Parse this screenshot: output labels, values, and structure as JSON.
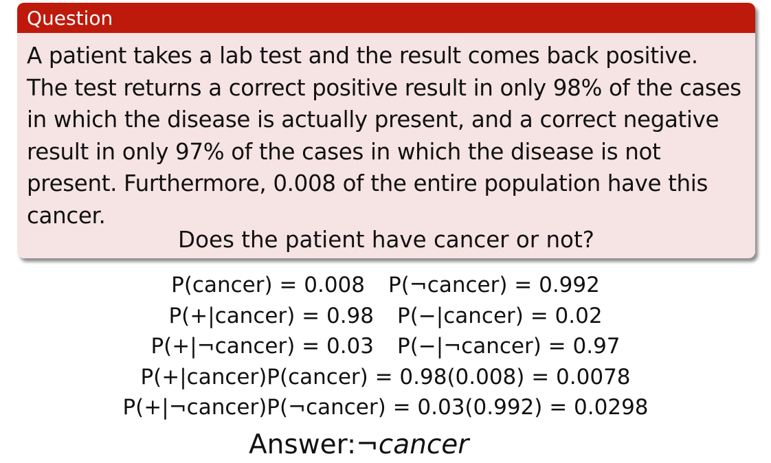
{
  "block": {
    "title": "Question",
    "paragraph": "A patient takes a lab test and the result comes back positive. The test returns a correct positive result in only 98% of the cases in which the disease is actually present, and a correct negative result in only 97% of the cases in which the disease is not present. Furthermore, 0.008 of the entire population have this cancer.",
    "question": "Does the patient have cancer or not?",
    "title_bg": "#be1a0b",
    "body_bg": "#f6e3e4"
  },
  "equations": [
    [
      "P(cancer) = 0.008",
      "P(¬cancer) = 0.992"
    ],
    [
      "P(+|cancer) = 0.98",
      "P(−|cancer) = 0.02"
    ],
    [
      "P(+|¬cancer) = 0.03",
      "P(−|¬cancer) = 0.97"
    ],
    [
      "P(+|cancer)P(cancer) = 0.98(0.008) = 0.0078"
    ],
    [
      "P(+|¬cancer)P(¬cancer) = 0.03(0.992) = 0.0298"
    ]
  ],
  "answer": {
    "label": "Answer:",
    "value": "¬cancer"
  }
}
